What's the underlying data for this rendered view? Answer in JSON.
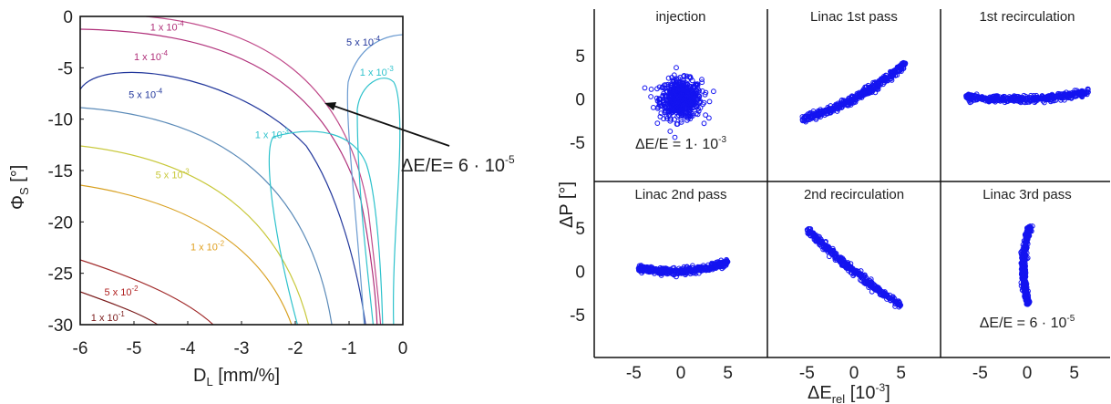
{
  "chart_data": [
    {
      "type": "contour",
      "xlabel": "D",
      "xlabel_sub": "L",
      "xlabel_unit": " [mm/%]",
      "ylabel": "Φ",
      "ylabel_sub": "S",
      "ylabel_unit": " [°]",
      "xlim": [
        -6,
        0
      ],
      "ylim": [
        -30,
        0
      ],
      "xticks": [
        "-6",
        "-5",
        "-4",
        "-3",
        "-2",
        "-1",
        "0"
      ],
      "yticks": [
        "0",
        "-5",
        "-10",
        "-15",
        "-20",
        "-25",
        "-30"
      ],
      "contour_labels": [
        {
          "text": "1 x 10",
          "exp": "-4",
          "color": "#b0307a",
          "x": -4.7,
          "y": -1.0
        },
        {
          "text": "1 x 10",
          "exp": "-4",
          "color": "#b0307a",
          "x": -5.0,
          "y": -3.9
        },
        {
          "text": "5 x 10",
          "exp": "-4",
          "color": "#23389c",
          "x": -1.05,
          "y": -2.5
        },
        {
          "text": "5 x 10",
          "exp": "-4",
          "color": "#23389c",
          "x": -5.1,
          "y": -7.6
        },
        {
          "text": "1 x 10",
          "exp": "-3",
          "color": "#2ec2cc",
          "x": -0.8,
          "y": -5.4
        },
        {
          "text": "1 x 10",
          "exp": "-3",
          "color": "#2ec2cc",
          "x": -2.75,
          "y": -11.5
        },
        {
          "text": "5 x 10",
          "exp": "-3",
          "color": "#c8c83a",
          "x": -4.6,
          "y": -15.4
        },
        {
          "text": "1 x 10",
          "exp": "-2",
          "color": "#e0a020",
          "x": -3.95,
          "y": -22.4
        },
        {
          "text": "5 x 10",
          "exp": "-2",
          "color": "#b02020",
          "x": -5.55,
          "y": -26.8
        },
        {
          "text": "1 x 10",
          "exp": "-1",
          "color": "#7a1a1a",
          "x": -5.8,
          "y": -29.3
        }
      ],
      "annotation": {
        "text": "ΔE/E= 6 · 10",
        "exp": "-5"
      }
    },
    {
      "type": "scatter",
      "xlabel": "ΔE",
      "xlabel_sub": "rel",
      "xlabel_unit": " [10",
      "xlabel_unit_exp": "-3",
      "xlabel_unit_end": "]",
      "ylabel": "ΔP [°]",
      "xticks": [
        "-5",
        "0",
        "5"
      ],
      "yticks": [
        "5",
        "0",
        "-5"
      ],
      "panels": [
        {
          "title": "injection",
          "note": "ΔE/E = 1· 10",
          "note_exp": "-3"
        },
        {
          "title": "Linac 1st pass"
        },
        {
          "title": "1st recirculation"
        },
        {
          "title": "Linac 2nd pass"
        },
        {
          "title": "2nd recirculation"
        },
        {
          "title": "Linac 3rd pass",
          "note": "ΔE/E = 6 · 10",
          "note_exp": "-5"
        }
      ],
      "marker_color": "#1414f0"
    }
  ]
}
